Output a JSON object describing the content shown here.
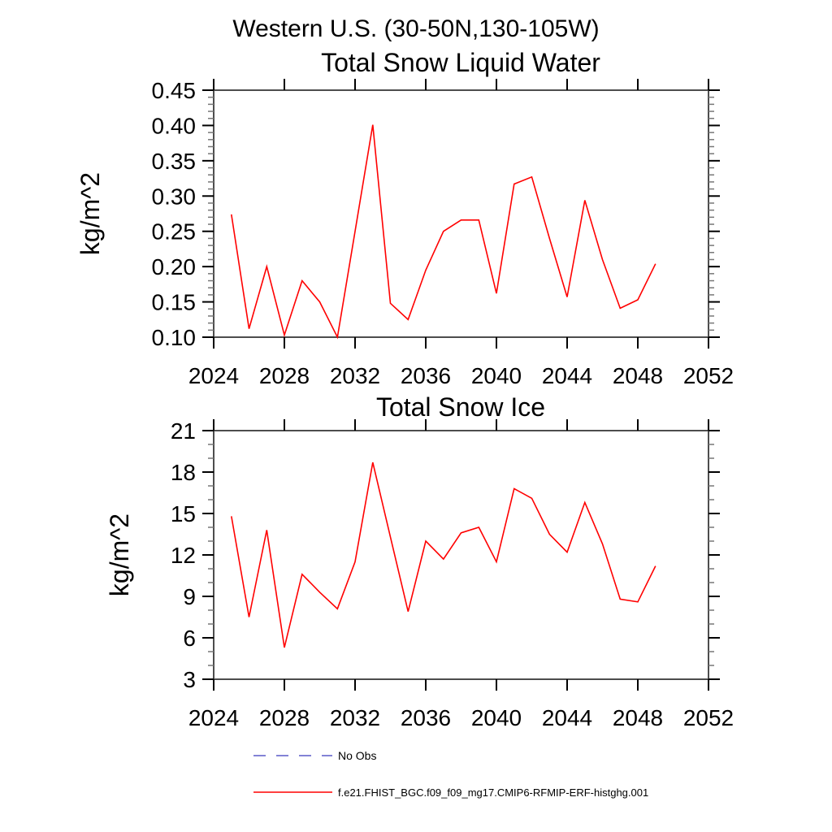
{
  "page_title": "Western U.S. (30-50N,130-105W)",
  "colors": {
    "series": "#ff0000",
    "no_obs": "#5a5ac8",
    "spine": "#4d4d4d",
    "tick_major": "#000000",
    "tick_minor": "#777777",
    "text": "#000000"
  },
  "legend": {
    "items": [
      {
        "label": "No Obs",
        "style": "dashed",
        "color": "#5a5ac8"
      },
      {
        "label": "f.e21.FHIST_BGC.f09_f09_mg17.CMIP6-RFMIP-ERF-histghg.001",
        "style": "solid",
        "color": "#ff0000"
      }
    ]
  },
  "chart_data": [
    {
      "type": "line",
      "title": "Total Snow Liquid Water",
      "xlabel": "",
      "ylabel": "kg/m^2",
      "xlim": [
        2024,
        2052
      ],
      "ylim": [
        0.1,
        0.45
      ],
      "xticks": [
        2024,
        2028,
        2032,
        2036,
        2040,
        2044,
        2048,
        2052
      ],
      "xtick_labels": [
        "2024",
        "2028",
        "2032",
        "2036",
        "2040",
        "2044",
        "2048",
        "2052"
      ],
      "yticks": [
        0.45,
        0.4,
        0.35,
        0.3,
        0.25,
        0.2,
        0.15,
        0.1
      ],
      "ytick_labels": [
        "0.45",
        "0.40",
        "0.35",
        "0.30",
        "0.25",
        "0.20",
        "0.15",
        "0.10"
      ],
      "yminor_step": 0.01,
      "grid": false,
      "x": [
        2025,
        2026,
        2027,
        2028,
        2029,
        2030,
        2031,
        2032,
        2033,
        2034,
        2035,
        2036,
        2037,
        2038,
        2039,
        2040,
        2041,
        2042,
        2043,
        2044,
        2045,
        2046,
        2047,
        2048,
        2049
      ],
      "series": [
        {
          "name": "f.e21.FHIST_BGC.f09_f09_mg17.CMIP6-RFMIP-ERF-histghg.001",
          "color": "#ff0000",
          "values": [
            0.274,
            0.112,
            0.2,
            0.103,
            0.18,
            0.15,
            0.1,
            0.25,
            0.401,
            0.148,
            0.125,
            0.195,
            0.25,
            0.266,
            0.266,
            0.162,
            0.317,
            0.327,
            0.24,
            0.157,
            0.294,
            0.21,
            0.141,
            0.153,
            0.204
          ]
        }
      ]
    },
    {
      "type": "line",
      "title": "Total Snow Ice",
      "xlabel": "",
      "ylabel": "kg/m^2",
      "xlim": [
        2024,
        2052
      ],
      "ylim": [
        3,
        21
      ],
      "xticks": [
        2024,
        2028,
        2032,
        2036,
        2040,
        2044,
        2048,
        2052
      ],
      "xtick_labels": [
        "2024",
        "2028",
        "2032",
        "2036",
        "2040",
        "2044",
        "2048",
        "2052"
      ],
      "yticks": [
        21,
        18,
        15,
        12,
        9,
        6,
        3
      ],
      "ytick_labels": [
        "21",
        "18",
        "15",
        "12",
        "9",
        "6",
        "3"
      ],
      "yminor_step": 1,
      "grid": false,
      "x": [
        2025,
        2026,
        2027,
        2028,
        2029,
        2030,
        2031,
        2032,
        2033,
        2034,
        2035,
        2036,
        2037,
        2038,
        2039,
        2040,
        2041,
        2042,
        2043,
        2044,
        2045,
        2046,
        2047,
        2048,
        2049
      ],
      "series": [
        {
          "name": "f.e21.FHIST_BGC.f09_f09_mg17.CMIP6-RFMIP-ERF-histghg.001",
          "color": "#ff0000",
          "values": [
            14.8,
            7.5,
            13.8,
            5.3,
            10.6,
            9.3,
            8.1,
            11.5,
            18.7,
            13.3,
            7.9,
            13.0,
            11.7,
            13.6,
            14.0,
            11.5,
            16.8,
            16.1,
            13.5,
            12.2,
            15.8,
            12.8,
            8.8,
            8.6,
            11.2
          ]
        }
      ]
    }
  ]
}
